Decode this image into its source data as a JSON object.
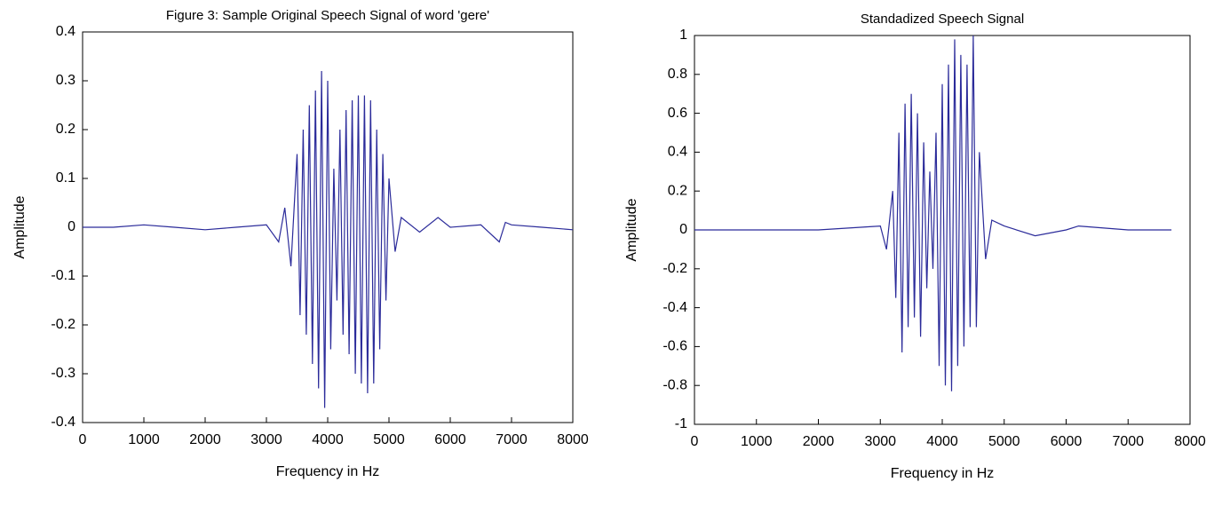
{
  "chart_data": [
    {
      "type": "line",
      "title": "Figure 3: Sample Original Speech Signal of word 'gere'",
      "xlabel": "Frequency in Hz",
      "ylabel": "Amplitude",
      "xlim": [
        0,
        8000
      ],
      "ylim": [
        -0.4,
        0.4
      ],
      "xticks": [
        0,
        1000,
        2000,
        3000,
        4000,
        5000,
        6000,
        7000,
        8000
      ],
      "yticks": [
        -0.4,
        -0.3,
        -0.2,
        -0.1,
        0,
        0.1,
        0.2,
        0.3,
        0.4
      ],
      "color": "#2b2b9a",
      "x": [
        0,
        500,
        1000,
        1500,
        2000,
        2500,
        3000,
        3200,
        3300,
        3400,
        3500,
        3550,
        3600,
        3650,
        3700,
        3750,
        3800,
        3850,
        3900,
        3950,
        4000,
        4050,
        4100,
        4150,
        4200,
        4250,
        4300,
        4350,
        4400,
        4450,
        4500,
        4550,
        4600,
        4650,
        4700,
        4750,
        4800,
        4850,
        4900,
        4950,
        5000,
        5100,
        5200,
        5500,
        5800,
        6000,
        6500,
        6800,
        6900,
        7000,
        7500,
        8000
      ],
      "values": [
        0,
        0,
        0.005,
        0,
        -0.005,
        0,
        0.005,
        -0.03,
        0.04,
        -0.08,
        0.15,
        -0.18,
        0.2,
        -0.22,
        0.25,
        -0.28,
        0.28,
        -0.33,
        0.32,
        -0.37,
        0.3,
        -0.25,
        0.12,
        -0.15,
        0.2,
        -0.22,
        0.24,
        -0.26,
        0.26,
        -0.3,
        0.27,
        -0.32,
        0.27,
        -0.34,
        0.26,
        -0.32,
        0.2,
        -0.25,
        0.15,
        -0.15,
        0.1,
        -0.05,
        0.02,
        -0.01,
        0.02,
        0,
        0.005,
        -0.03,
        0.01,
        0.005,
        0,
        -0.005
      ]
    },
    {
      "type": "line",
      "title": "Standadized Speech Signal",
      "xlabel": "Frequency in Hz",
      "ylabel": "Amplitude",
      "xlim": [
        0,
        8000
      ],
      "ylim": [
        -1,
        1
      ],
      "xticks": [
        0,
        1000,
        2000,
        3000,
        4000,
        5000,
        6000,
        7000,
        8000
      ],
      "yticks": [
        -1,
        -0.8,
        -0.6,
        -0.4,
        -0.2,
        0,
        0.2,
        0.4,
        0.6,
        0.8,
        1
      ],
      "color": "#2b2b9a",
      "x": [
        0,
        1000,
        2000,
        3000,
        3100,
        3200,
        3250,
        3300,
        3350,
        3400,
        3450,
        3500,
        3550,
        3600,
        3650,
        3700,
        3750,
        3800,
        3850,
        3900,
        3950,
        4000,
        4050,
        4100,
        4150,
        4200,
        4250,
        4300,
        4350,
        4400,
        4450,
        4500,
        4550,
        4600,
        4700,
        4800,
        5000,
        5500,
        6000,
        6200,
        7000,
        7700
      ],
      "values": [
        0,
        0,
        0,
        0.02,
        -0.1,
        0.2,
        -0.35,
        0.5,
        -0.63,
        0.65,
        -0.5,
        0.7,
        -0.45,
        0.6,
        -0.55,
        0.45,
        -0.3,
        0.3,
        -0.2,
        0.5,
        -0.7,
        0.75,
        -0.8,
        0.85,
        -0.83,
        0.98,
        -0.7,
        0.9,
        -0.6,
        0.85,
        -0.5,
        1.0,
        -0.5,
        0.4,
        -0.15,
        0.05,
        0.02,
        -0.03,
        0,
        0.02,
        0,
        0
      ]
    }
  ]
}
